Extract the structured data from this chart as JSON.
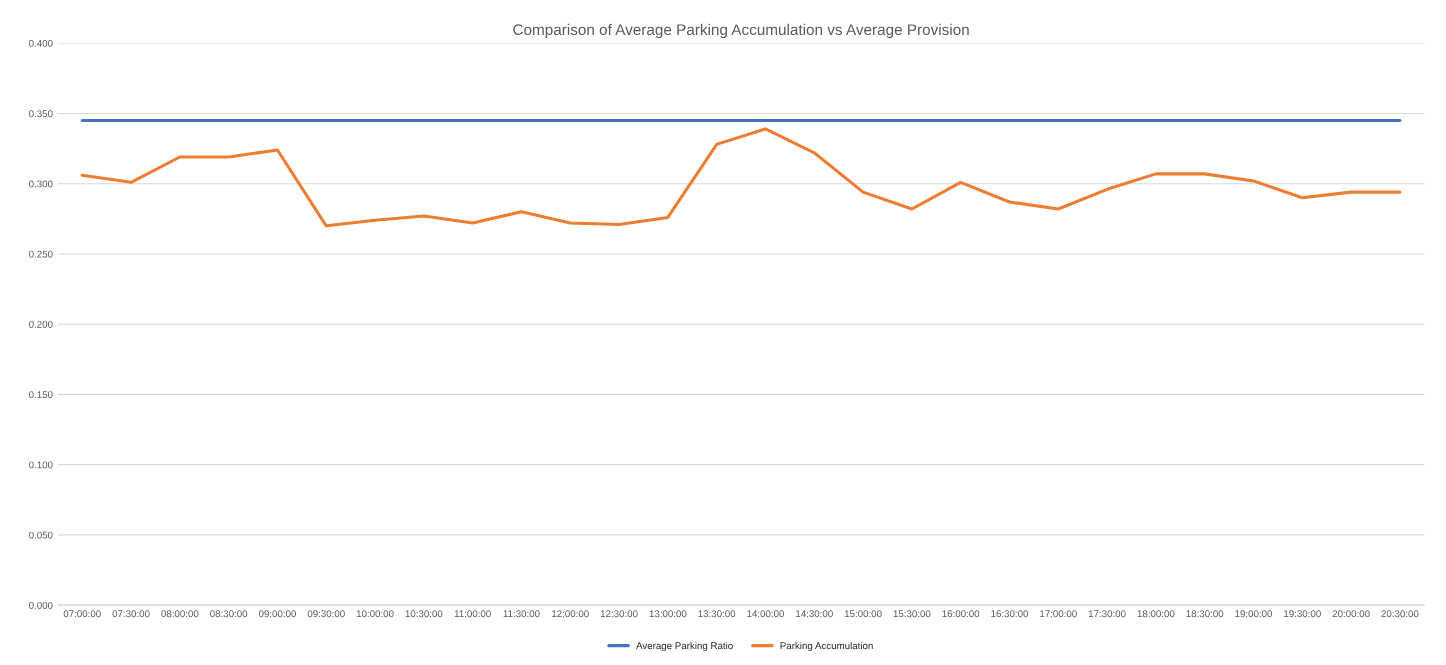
{
  "chart_data": {
    "type": "line",
    "title": "Comparison of Average Parking Accumulation vs Average Provision",
    "categories": [
      "07:00:00",
      "07:30:00",
      "08:00:00",
      "08:30:00",
      "09:00:00",
      "09:30:00",
      "10:00:00",
      "10:30:00",
      "11:00:00",
      "11:30:00",
      "12:00:00",
      "12:30:00",
      "13:00:00",
      "13:30:00",
      "14:00:00",
      "14:30:00",
      "15:00:00",
      "15:30:00",
      "16:00:00",
      "16:30:00",
      "17:00:00",
      "17:30:00",
      "18:00:00",
      "18:30:00",
      "19:00:00",
      "19:30:00",
      "20:00:00",
      "20:30:00"
    ],
    "series": [
      {
        "name": "Average Parking Ratio",
        "color": "#4472c4",
        "values": [
          0.345,
          0.345,
          0.345,
          0.345,
          0.345,
          0.345,
          0.345,
          0.345,
          0.345,
          0.345,
          0.345,
          0.345,
          0.345,
          0.345,
          0.345,
          0.345,
          0.345,
          0.345,
          0.345,
          0.345,
          0.345,
          0.345,
          0.345,
          0.345,
          0.345,
          0.345,
          0.345,
          0.345
        ]
      },
      {
        "name": "Parking Accumulation",
        "color": "#ed7d31",
        "values": [
          0.306,
          0.301,
          0.319,
          0.319,
          0.324,
          0.27,
          0.274,
          0.277,
          0.272,
          0.28,
          0.272,
          0.271,
          0.276,
          0.328,
          0.339,
          0.322,
          0.294,
          0.282,
          0.301,
          0.287,
          0.282,
          0.296,
          0.307,
          0.307,
          0.302,
          0.29,
          0.294,
          0.294
        ]
      }
    ],
    "ylim": [
      0,
      0.4
    ],
    "yticks": [
      {
        "value": 0,
        "label": "0.000"
      },
      {
        "value": 0.05,
        "label": "0.050"
      },
      {
        "value": 0.1,
        "label": "0.100"
      },
      {
        "value": 0.15,
        "label": "0.150"
      },
      {
        "value": 0.2,
        "label": "0.200"
      },
      {
        "value": 0.25,
        "label": "0.250"
      },
      {
        "value": 0.3,
        "label": "0.300"
      },
      {
        "value": 0.35,
        "label": "0.350"
      },
      {
        "value": 0.4,
        "label": "0.400"
      }
    ],
    "grid": "y",
    "legend": "bottom",
    "marker": "none",
    "line_style": "solid"
  }
}
